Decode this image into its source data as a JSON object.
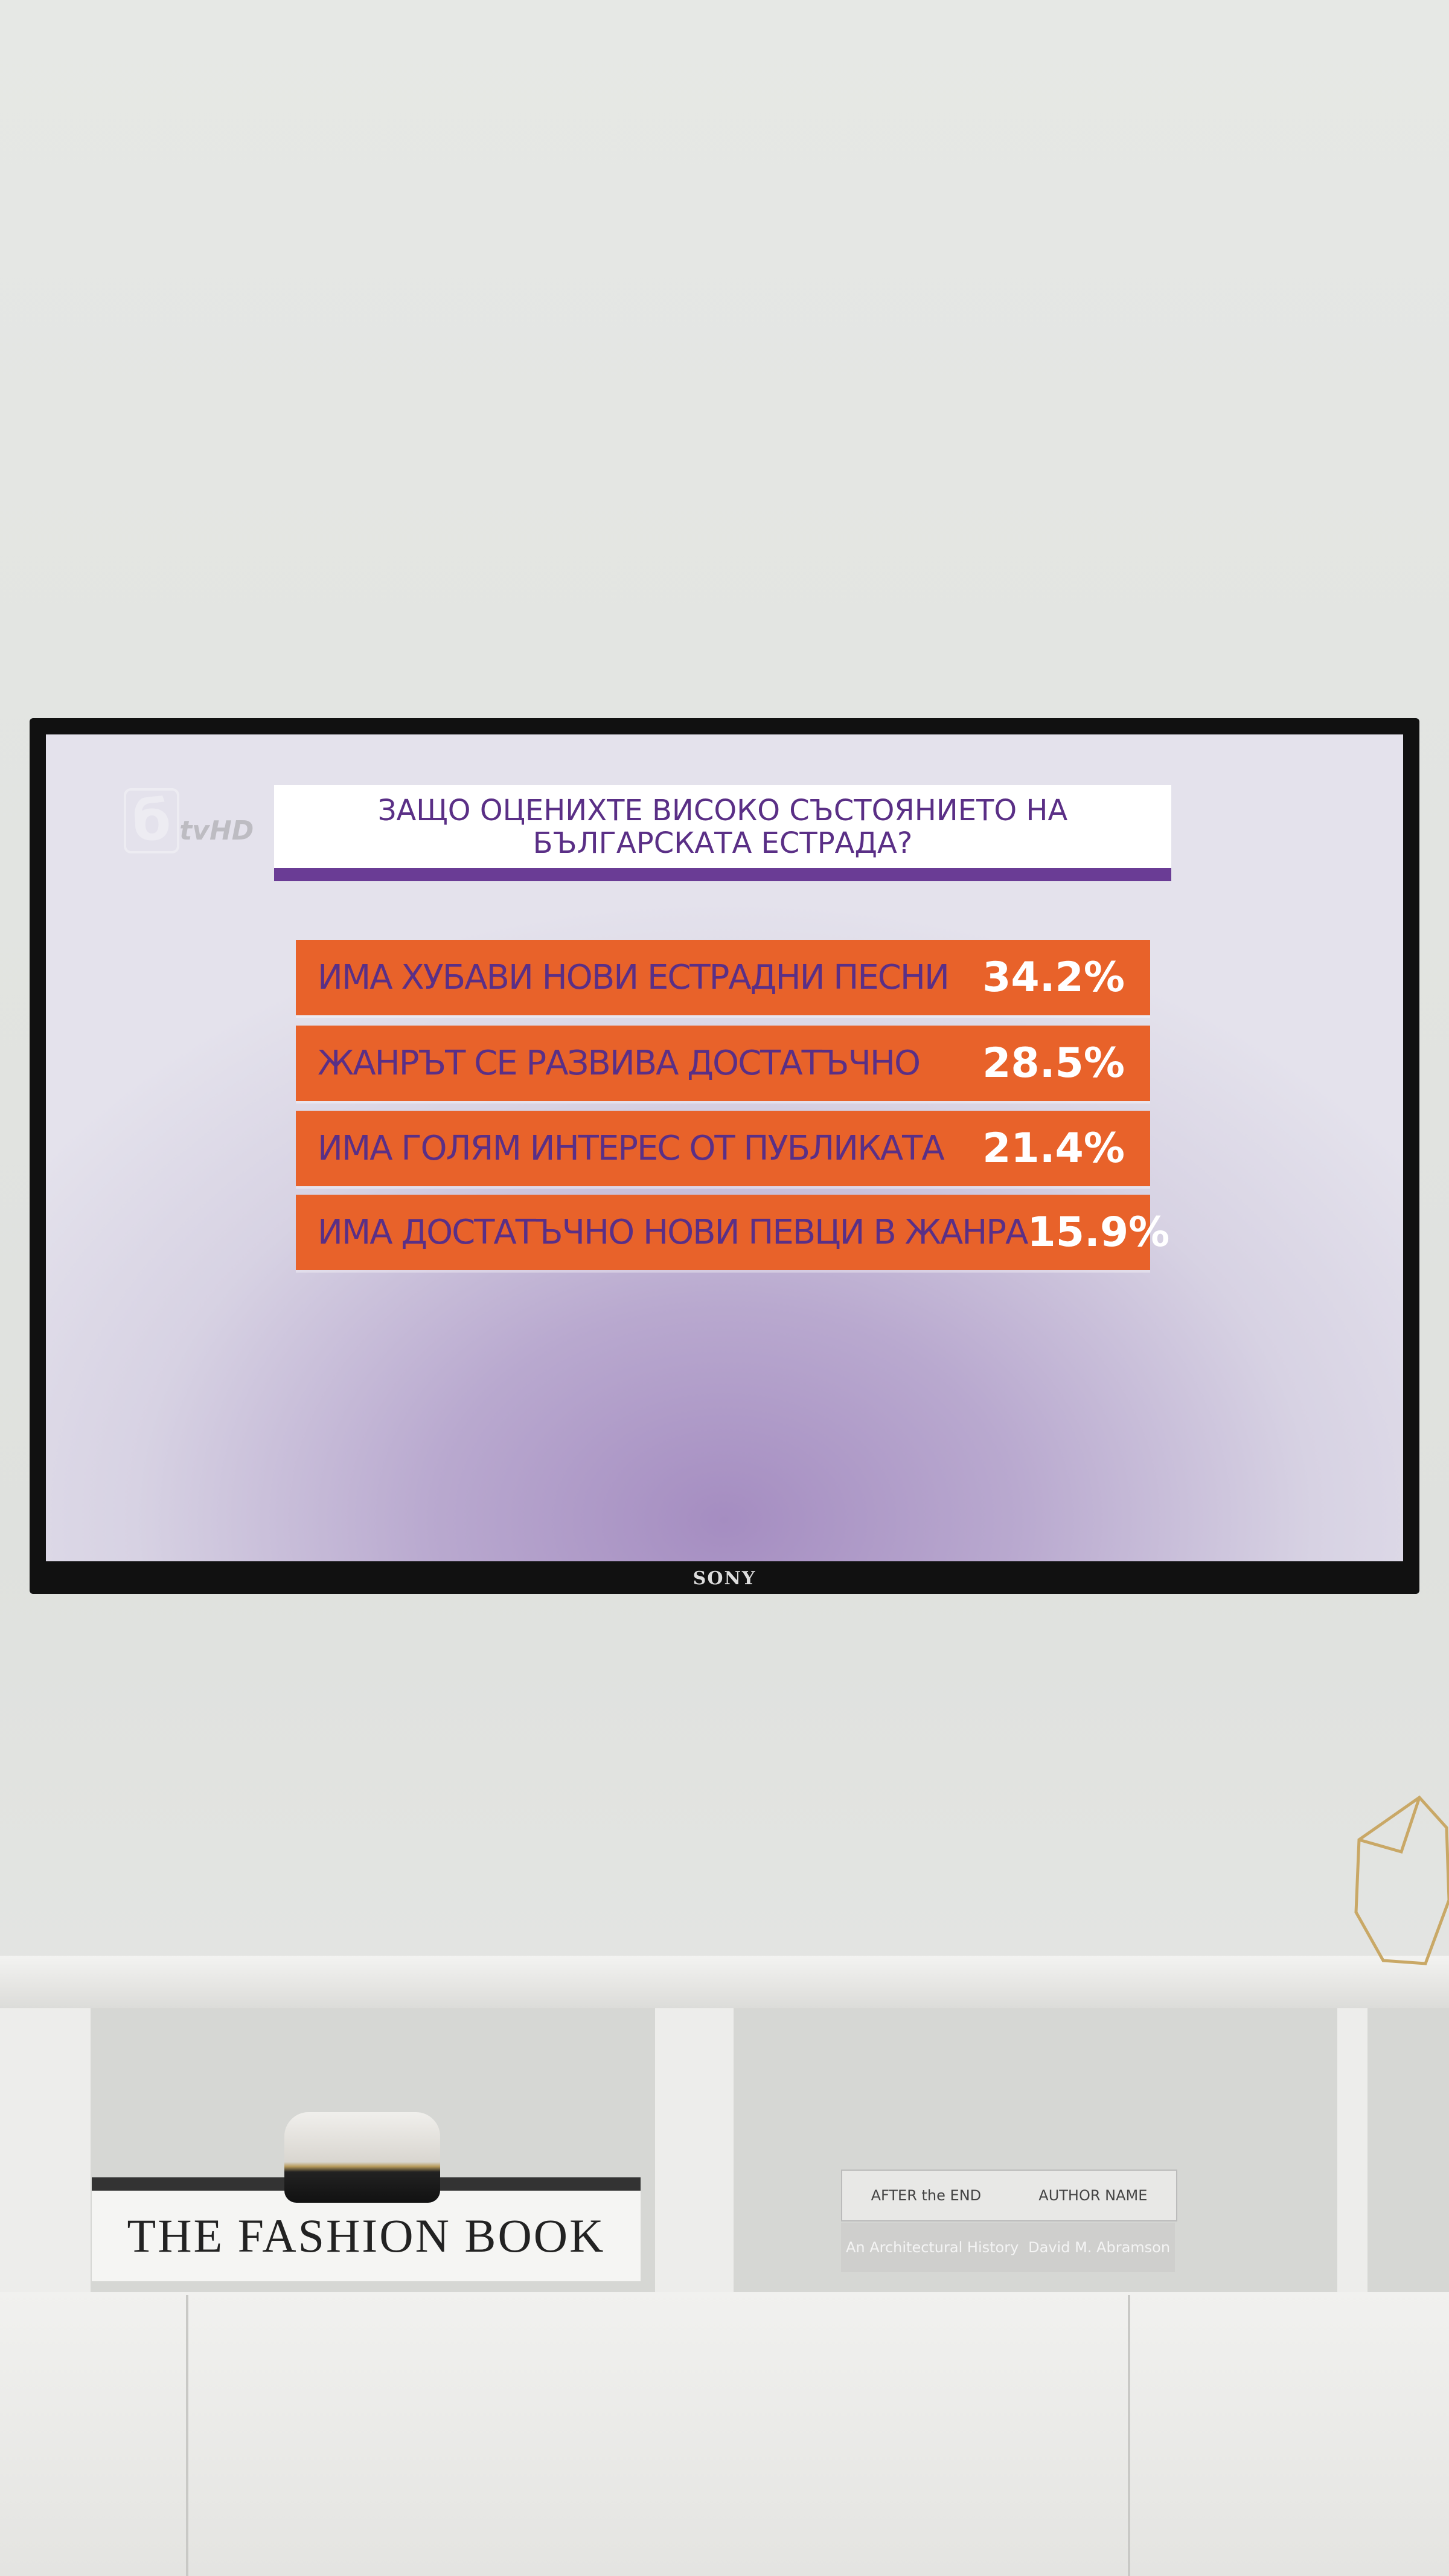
{
  "logo": {
    "mark": "б",
    "text": "tv",
    "badge": "HD"
  },
  "poll": {
    "title": "ЗАЩО ОЦЕНИХТЕ ВИСОКО СЪСТОЯНИЕТО НА БЪЛГАРСКАТА ЕСТРАДА?",
    "items": [
      {
        "label": "ИМА ХУБАВИ НОВИ ЕСТРАДНИ ПЕСНИ",
        "value": "34.2%"
      },
      {
        "label": "ЖАНРЪТ СЕ РАЗВИВА ДОСТАТЪЧНО",
        "value": "28.5%"
      },
      {
        "label": "ИМА ГОЛЯМ ИНТЕРЕС ОТ ПУБЛИКАТА",
        "value": "21.4%"
      },
      {
        "label": "ИМА ДОСТАТЪЧНО НОВИ ПЕВЦИ В ЖАНРА",
        "value": "15.9%"
      }
    ]
  },
  "tv_brand": "SONY",
  "books": {
    "fashion": "THE FASHION BOOK",
    "top_left": "AFTER the END",
    "top_right": "AUTHOR NAME",
    "bottom_left": "An Architectural History",
    "bottom_right": "David M. Abramson"
  }
}
